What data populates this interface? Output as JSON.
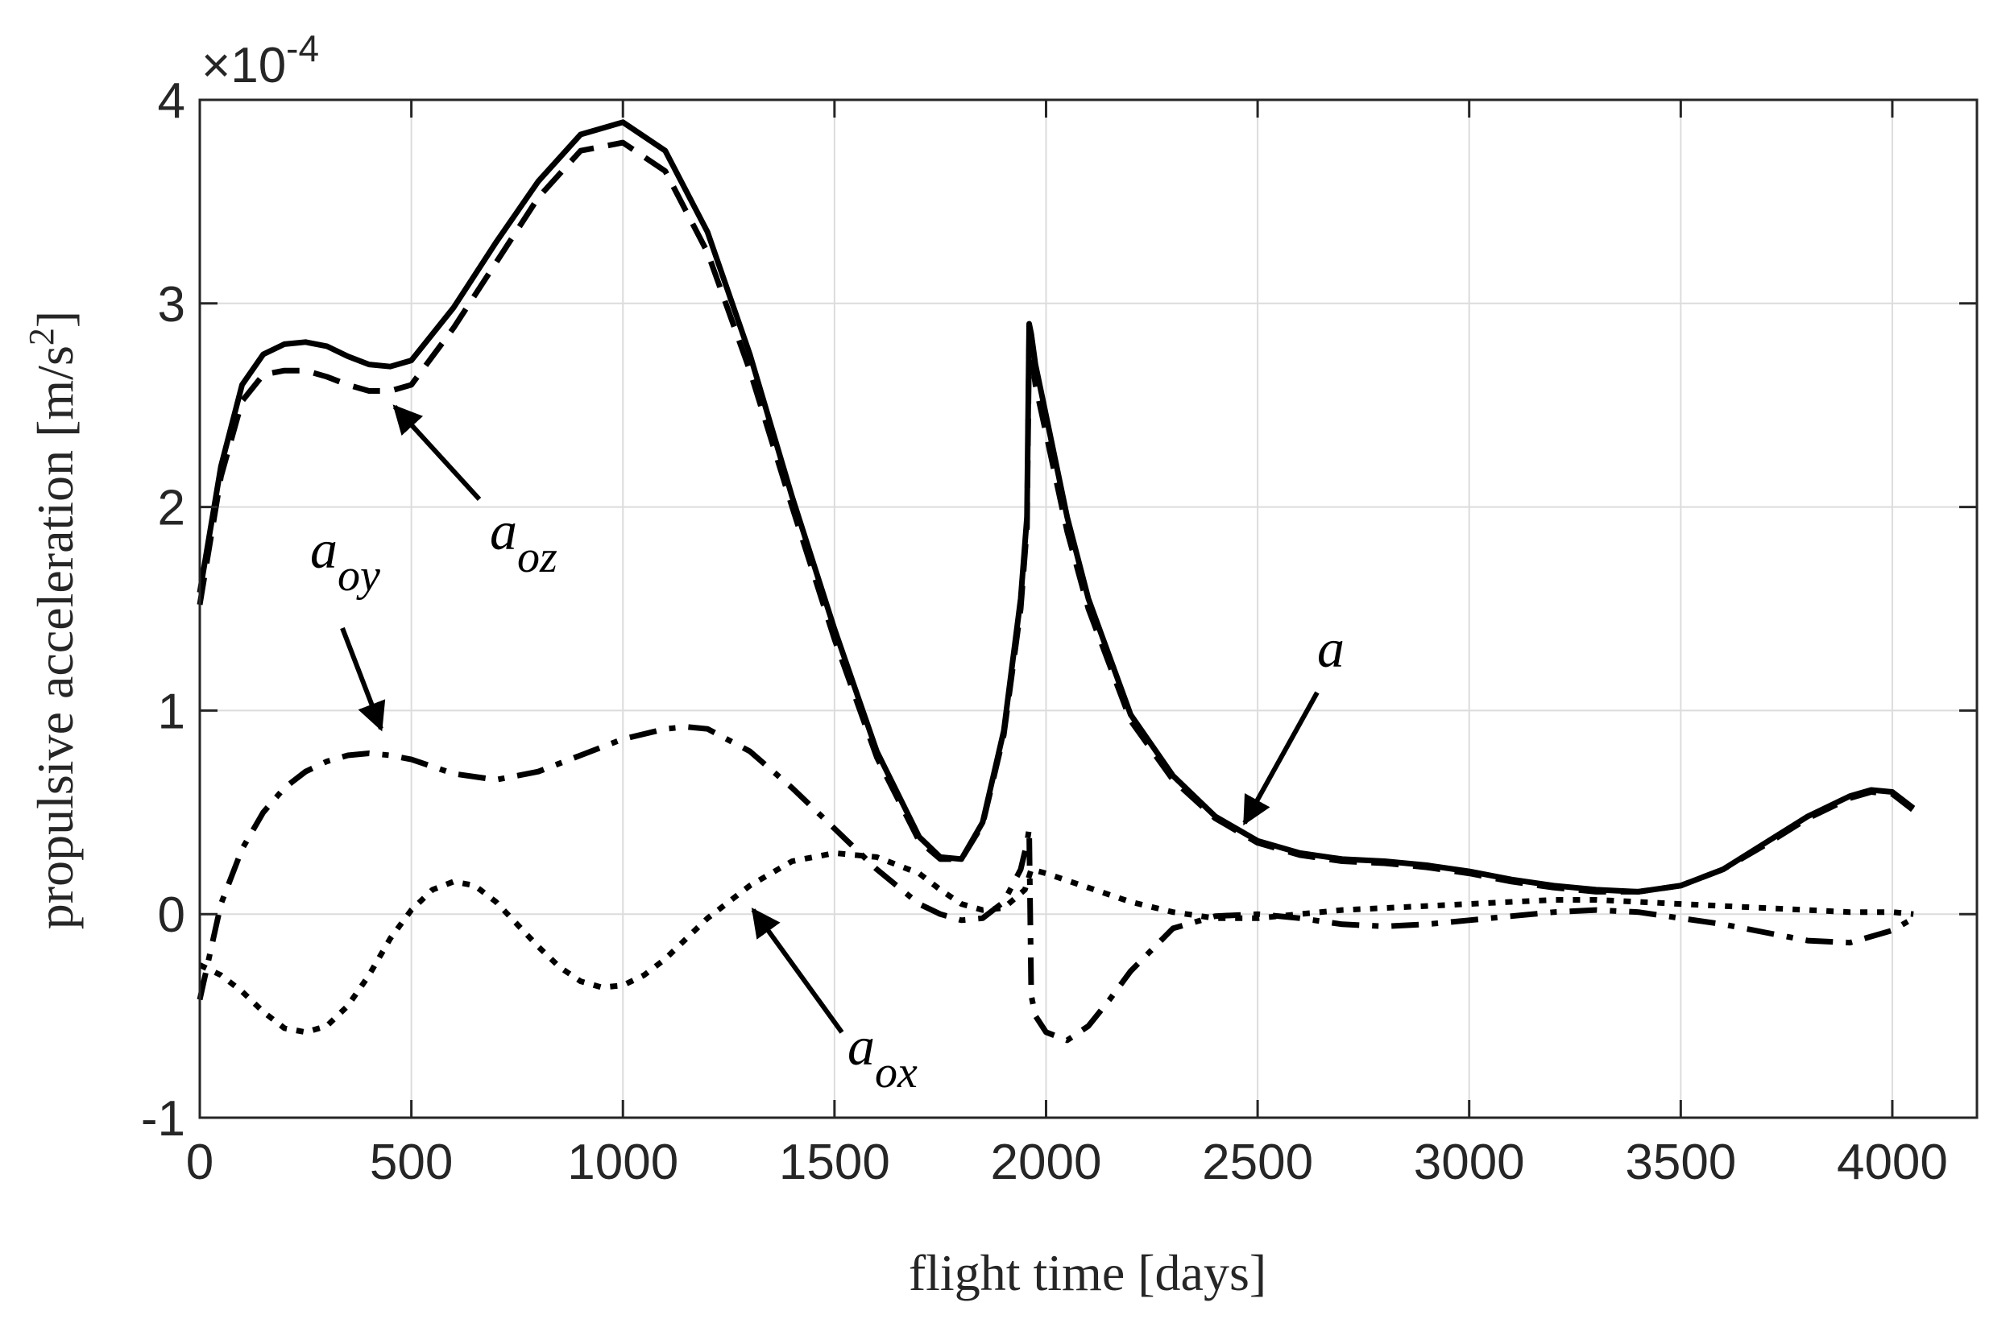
{
  "chart_data": {
    "type": "line",
    "xlabel": "flight time [days]",
    "ylabel_main": "propulsive acceleration [m/s",
    "ylabel_sup": "2",
    "ylabel_end": "]",
    "xlim": [
      0,
      4200
    ],
    "ylim": [
      -1,
      4
    ],
    "x_ticks": [
      0,
      500,
      1000,
      1500,
      2000,
      2500,
      3000,
      3500,
      4000
    ],
    "y_ticks": [
      -1,
      0,
      1,
      2,
      3,
      4
    ],
    "x_tick_labels": [
      "0",
      "500",
      "1000",
      "1500",
      "2000",
      "2500",
      "3000",
      "3500",
      "4000"
    ],
    "y_tick_labels": [
      "-1",
      "0",
      "1",
      "2",
      "3",
      "4"
    ],
    "y_multiplier": "×10",
    "y_multiplier_exp": "-4",
    "grid": true,
    "series": [
      {
        "style": "solid",
        "x": [
          0,
          50,
          100,
          150,
          200,
          250,
          300,
          350,
          400,
          450,
          500,
          600,
          700,
          800,
          900,
          1000,
          1100,
          1200,
          1300,
          1400,
          1500,
          1600,
          1700,
          1750,
          1800,
          1850,
          1900,
          1940,
          1955,
          1960,
          1965,
          1975,
          2000,
          2050,
          2100,
          2200,
          2300,
          2400,
          2500,
          2600,
          2700,
          2800,
          2900,
          3000,
          3100,
          3200,
          3300,
          3400,
          3500,
          3600,
          3700,
          3800,
          3900,
          3950,
          4000,
          4050
        ],
        "y": [
          1.58,
          2.2,
          2.6,
          2.75,
          2.8,
          2.81,
          2.79,
          2.74,
          2.7,
          2.69,
          2.72,
          2.98,
          3.3,
          3.6,
          3.83,
          3.89,
          3.75,
          3.35,
          2.75,
          2.05,
          1.4,
          0.8,
          0.38,
          0.28,
          0.27,
          0.45,
          0.9,
          1.55,
          1.95,
          2.9,
          2.85,
          2.7,
          2.45,
          1.95,
          1.55,
          0.98,
          0.68,
          0.48,
          0.36,
          0.3,
          0.27,
          0.26,
          0.24,
          0.21,
          0.17,
          0.14,
          0.12,
          0.11,
          0.14,
          0.22,
          0.35,
          0.48,
          0.58,
          0.61,
          0.6,
          0.52
        ]
      },
      {
        "style": "dashed",
        "x": [
          0,
          50,
          100,
          150,
          200,
          250,
          300,
          350,
          400,
          450,
          500,
          600,
          700,
          800,
          900,
          1000,
          1100,
          1200,
          1300,
          1400,
          1500,
          1600,
          1700,
          1750,
          1800,
          1850,
          1900,
          1940,
          1955,
          1960,
          1965,
          1975,
          2000,
          2050,
          2100,
          2200,
          2300,
          2400,
          2500,
          2600,
          2700,
          2800,
          2900,
          3000,
          3100,
          3200,
          3300,
          3400,
          3500,
          3600,
          3700,
          3800,
          3900,
          3950,
          4000,
          4050
        ],
        "y": [
          1.52,
          2.15,
          2.52,
          2.65,
          2.67,
          2.67,
          2.64,
          2.6,
          2.57,
          2.57,
          2.6,
          2.88,
          3.2,
          3.52,
          3.75,
          3.79,
          3.65,
          3.25,
          2.67,
          2.0,
          1.35,
          0.77,
          0.36,
          0.27,
          0.27,
          0.44,
          0.88,
          1.5,
          1.9,
          2.82,
          2.75,
          2.6,
          2.36,
          1.88,
          1.5,
          0.95,
          0.66,
          0.47,
          0.35,
          0.29,
          0.26,
          0.25,
          0.23,
          0.2,
          0.16,
          0.13,
          0.11,
          0.11,
          0.14,
          0.22,
          0.34,
          0.47,
          0.57,
          0.6,
          0.59,
          0.51
        ]
      },
      {
        "style": "dashdot",
        "x": [
          0,
          50,
          100,
          150,
          200,
          250,
          300,
          350,
          400,
          450,
          500,
          600,
          700,
          800,
          900,
          1000,
          1100,
          1150,
          1200,
          1300,
          1400,
          1500,
          1600,
          1700,
          1750,
          1800,
          1850,
          1900,
          1940,
          1955,
          1960,
          1965,
          1975,
          2000,
          2050,
          2100,
          2150,
          2200,
          2300,
          2400,
          2500,
          2600,
          2700,
          2800,
          2900,
          3000,
          3100,
          3200,
          3300,
          3400,
          3500,
          3600,
          3700,
          3800,
          3900,
          4000,
          4050
        ],
        "y": [
          -0.42,
          0.05,
          0.32,
          0.5,
          0.62,
          0.7,
          0.75,
          0.78,
          0.79,
          0.78,
          0.76,
          0.69,
          0.66,
          0.7,
          0.78,
          0.86,
          0.91,
          0.92,
          0.91,
          0.8,
          0.62,
          0.42,
          0.22,
          0.05,
          0.0,
          -0.03,
          -0.02,
          0.06,
          0.22,
          0.35,
          0.42,
          -0.4,
          -0.5,
          -0.58,
          -0.62,
          -0.55,
          -0.42,
          -0.28,
          -0.07,
          -0.01,
          0.0,
          -0.02,
          -0.05,
          -0.06,
          -0.05,
          -0.03,
          -0.01,
          0.01,
          0.02,
          0.01,
          -0.02,
          -0.05,
          -0.09,
          -0.13,
          -0.14,
          -0.08,
          -0.02
        ]
      },
      {
        "style": "dotted",
        "x": [
          0,
          50,
          100,
          150,
          200,
          250,
          300,
          350,
          400,
          450,
          500,
          550,
          600,
          650,
          700,
          750,
          800,
          850,
          900,
          950,
          1000,
          1050,
          1100,
          1150,
          1200,
          1300,
          1400,
          1500,
          1600,
          1700,
          1750,
          1800,
          1850,
          1900,
          1950,
          1965,
          2000,
          2100,
          2200,
          2300,
          2400,
          2500,
          2600,
          2700,
          2800,
          2900,
          3000,
          3100,
          3200,
          3300,
          3400,
          3500,
          3600,
          3700,
          3800,
          3900,
          4000,
          4050
        ],
        "y": [
          -0.25,
          -0.3,
          -0.38,
          -0.48,
          -0.56,
          -0.58,
          -0.55,
          -0.45,
          -0.3,
          -0.12,
          0.02,
          0.12,
          0.16,
          0.14,
          0.06,
          -0.05,
          -0.16,
          -0.26,
          -0.33,
          -0.36,
          -0.35,
          -0.3,
          -0.22,
          -0.12,
          -0.02,
          0.14,
          0.26,
          0.3,
          0.28,
          0.2,
          0.12,
          0.05,
          0.02,
          0.03,
          0.12,
          0.22,
          0.2,
          0.13,
          0.06,
          0.01,
          -0.02,
          -0.02,
          0.0,
          0.02,
          0.03,
          0.04,
          0.05,
          0.06,
          0.07,
          0.07,
          0.06,
          0.05,
          0.04,
          0.03,
          0.02,
          0.01,
          0.01,
          0.0
        ]
      }
    ],
    "annotations": [
      {
        "base": "a",
        "sub": "oz"
      },
      {
        "base": "a",
        "sub": "oy"
      },
      {
        "base": "a",
        "sub": ""
      },
      {
        "base": "a",
        "sub": "ox"
      }
    ]
  }
}
